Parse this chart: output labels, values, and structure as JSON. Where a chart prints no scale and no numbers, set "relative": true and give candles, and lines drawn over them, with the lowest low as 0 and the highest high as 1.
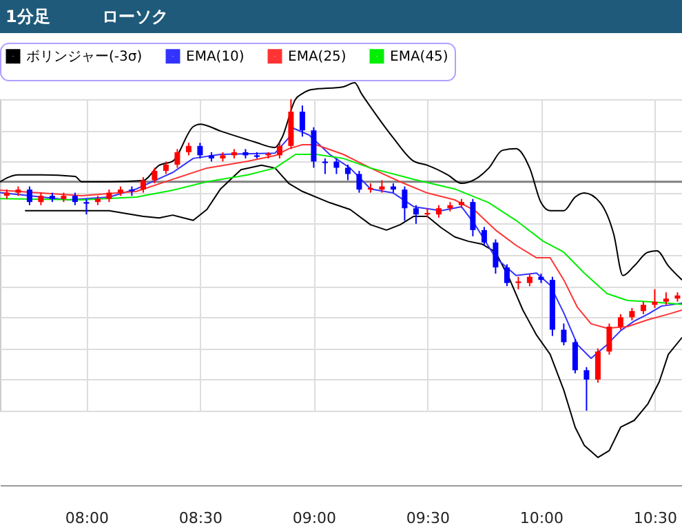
{
  "chart_data": {
    "type": "candlestick",
    "relative": true,
    "grid": true,
    "legend": "top left",
    "tick_labels": "x",
    "annotations": [
      "1分足",
      "ローソク"
    ],
    "xlim": [
      7.62,
      10.62
    ],
    "xticks": [
      {
        "value": 8,
        "label": "08:00"
      },
      {
        "value": 8.5,
        "label": "08:30"
      },
      {
        "value": 9,
        "label": "09:00"
      },
      {
        "value": 9.5,
        "label": "09:30"
      },
      {
        "value": 10,
        "label": "10:00"
      },
      {
        "value": 10.5,
        "label": "10:30"
      }
    ],
    "x": [
      7.65,
      7.7,
      7.75,
      7.8,
      7.85,
      7.9,
      7.95,
      8.0,
      8.05,
      8.1,
      8.15,
      8.2,
      8.25,
      8.3,
      8.35,
      8.4,
      8.45,
      8.5,
      8.55,
      8.6,
      8.65,
      8.7,
      8.75,
      8.8,
      8.85,
      8.9,
      8.95,
      9.0,
      9.05,
      9.1,
      9.15,
      9.2,
      9.25,
      9.3,
      9.35,
      9.4,
      9.45,
      9.5,
      9.55,
      9.6,
      9.65,
      9.7,
      9.75,
      9.8,
      9.85,
      9.9,
      9.95,
      10.0,
      10.05,
      10.1,
      10.15,
      10.2,
      10.25,
      10.3,
      10.35,
      10.4,
      10.45,
      10.5,
      10.55,
      10.6
    ],
    "ohlc": [
      [
        0.69,
        0.71,
        0.68,
        0.7
      ],
      [
        0.7,
        0.72,
        0.69,
        0.71
      ],
      [
        0.71,
        0.72,
        0.66,
        0.67
      ],
      [
        0.67,
        0.7,
        0.66,
        0.69
      ],
      [
        0.69,
        0.7,
        0.67,
        0.68
      ],
      [
        0.68,
        0.7,
        0.67,
        0.69
      ],
      [
        0.69,
        0.7,
        0.66,
        0.67
      ],
      [
        0.67,
        0.68,
        0.63,
        0.665
      ],
      [
        0.67,
        0.69,
        0.66,
        0.68
      ],
      [
        0.68,
        0.71,
        0.67,
        0.7
      ],
      [
        0.7,
        0.72,
        0.69,
        0.71
      ],
      [
        0.71,
        0.72,
        0.69,
        0.705
      ],
      [
        0.71,
        0.75,
        0.7,
        0.74
      ],
      [
        0.74,
        0.78,
        0.73,
        0.77
      ],
      [
        0.77,
        0.8,
        0.76,
        0.79
      ],
      [
        0.79,
        0.84,
        0.78,
        0.83
      ],
      [
        0.83,
        0.86,
        0.82,
        0.85
      ],
      [
        0.85,
        0.86,
        0.81,
        0.82
      ],
      [
        0.82,
        0.83,
        0.8,
        0.81
      ],
      [
        0.81,
        0.83,
        0.8,
        0.82
      ],
      [
        0.82,
        0.84,
        0.81,
        0.83
      ],
      [
        0.83,
        0.84,
        0.81,
        0.82
      ],
      [
        0.82,
        0.83,
        0.81,
        0.815
      ],
      [
        0.82,
        0.83,
        0.81,
        0.825
      ],
      [
        0.82,
        0.86,
        0.81,
        0.85
      ],
      [
        0.85,
        1.0,
        0.84,
        0.96
      ],
      [
        0.96,
        0.98,
        0.88,
        0.9
      ],
      [
        0.9,
        0.91,
        0.78,
        0.8
      ],
      [
        0.8,
        0.81,
        0.76,
        0.795
      ],
      [
        0.8,
        0.81,
        0.76,
        0.78
      ],
      [
        0.78,
        0.79,
        0.74,
        0.76
      ],
      [
        0.76,
        0.77,
        0.7,
        0.71
      ],
      [
        0.71,
        0.73,
        0.7,
        0.715
      ],
      [
        0.71,
        0.74,
        0.7,
        0.72
      ],
      [
        0.72,
        0.73,
        0.7,
        0.71
      ],
      [
        0.71,
        0.72,
        0.61,
        0.65
      ],
      [
        0.65,
        0.66,
        0.6,
        0.63
      ],
      [
        0.63,
        0.65,
        0.62,
        0.635
      ],
      [
        0.63,
        0.66,
        0.62,
        0.65
      ],
      [
        0.65,
        0.67,
        0.64,
        0.66
      ],
      [
        0.66,
        0.68,
        0.65,
        0.67
      ],
      [
        0.67,
        0.68,
        0.56,
        0.58
      ],
      [
        0.58,
        0.59,
        0.53,
        0.54
      ],
      [
        0.54,
        0.55,
        0.44,
        0.46
      ],
      [
        0.46,
        0.47,
        0.4,
        0.41
      ],
      [
        0.41,
        0.43,
        0.39,
        0.415
      ],
      [
        0.41,
        0.44,
        0.4,
        0.43
      ],
      [
        0.43,
        0.44,
        0.41,
        0.42
      ],
      [
        0.42,
        0.43,
        0.24,
        0.26
      ],
      [
        0.26,
        0.28,
        0.21,
        0.22
      ],
      [
        0.22,
        0.23,
        0.12,
        0.13
      ],
      [
        0.13,
        0.14,
        0.0,
        0.1
      ],
      [
        0.1,
        0.2,
        0.09,
        0.19
      ],
      [
        0.19,
        0.28,
        0.18,
        0.27
      ],
      [
        0.27,
        0.31,
        0.26,
        0.3
      ],
      [
        0.3,
        0.33,
        0.29,
        0.32
      ],
      [
        0.32,
        0.35,
        0.31,
        0.34
      ],
      [
        0.34,
        0.39,
        0.33,
        0.35
      ],
      [
        0.35,
        0.38,
        0.34,
        0.36
      ],
      [
        0.36,
        0.38,
        0.35,
        0.37
      ]
    ],
    "colors": [
      "#ff0000",
      "#ff0000",
      "#0000ff",
      "#ff0000",
      "#0000ff",
      "#ff0000",
      "#0000ff",
      "#0000ff",
      "#ff0000",
      "#ff0000",
      "#ff0000",
      "#0000ff",
      "#ff0000",
      "#ff0000",
      "#ff0000",
      "#ff0000",
      "#ff0000",
      "#0000ff",
      "#0000ff",
      "#ff0000",
      "#ff0000",
      "#0000ff",
      "#0000ff",
      "#ff0000",
      "#ff0000",
      "#ff0000",
      "#0000ff",
      "#0000ff",
      "#0000ff",
      "#0000ff",
      "#0000ff",
      "#0000ff",
      "#ff0000",
      "#ff0000",
      "#0000ff",
      "#0000ff",
      "#0000ff",
      "#ff0000",
      "#ff0000",
      "#ff0000",
      "#ff0000",
      "#0000ff",
      "#0000ff",
      "#0000ff",
      "#0000ff",
      "#ff0000",
      "#ff0000",
      "#0000ff",
      "#0000ff",
      "#0000ff",
      "#0000ff",
      "#0000ff",
      "#ff0000",
      "#ff0000",
      "#ff0000",
      "#ff0000",
      "#ff0000",
      "#ff0000",
      "#ff0000",
      "#ff0000"
    ],
    "ref_lines": [
      {
        "axis": "y",
        "value": 0.735,
        "color": "#808080"
      }
    ],
    "series": [
      {
        "type": "line",
        "color": "#000000",
        "x": [
          7.62,
          7.7,
          7.8,
          7.95,
          7.98,
          8.1,
          8.25,
          8.32,
          8.38,
          8.47,
          8.5,
          8.59,
          8.74,
          8.83,
          8.86,
          8.92,
          8.95,
          8.99,
          9.13,
          9.18,
          9.21,
          9.26,
          9.35,
          9.44,
          9.5,
          9.59,
          9.65,
          9.71,
          9.77,
          9.83,
          9.89,
          9.95,
          10.0,
          10.04,
          10.1,
          10.15,
          10.19,
          10.26,
          10.32,
          10.36,
          10.41,
          10.47,
          10.51,
          10.56,
          10.62
        ],
        "values": [
          0.735,
          0.757,
          0.757,
          0.752,
          0.735,
          0.735,
          0.739,
          0.788,
          0.801,
          0.912,
          0.92,
          0.898,
          0.863,
          0.845,
          0.876,
          1.0,
          1.018,
          1.031,
          1.04,
          1.053,
          1.018,
          0.965,
          0.876,
          0.801,
          0.788,
          0.757,
          0.73,
          0.743,
          0.779,
          0.836,
          0.841,
          0.779,
          0.668,
          0.642,
          0.642,
          0.686,
          0.699,
          0.668,
          0.566,
          0.434,
          0.465,
          0.509,
          0.513,
          0.465,
          0.42
        ]
      },
      {
        "type": "line",
        "name": "ボリンジャー(-3σ)",
        "color": "#000000",
        "x": [
          7.73,
          7.95,
          8.1,
          8.25,
          8.32,
          8.38,
          8.47,
          8.53,
          8.59,
          8.68,
          8.77,
          8.83,
          8.89,
          8.95,
          9.07,
          9.16,
          9.25,
          9.32,
          9.38,
          9.44,
          9.5,
          9.56,
          9.62,
          9.68,
          9.74,
          9.8,
          9.86,
          9.92,
          9.98,
          10.04,
          10.1,
          10.15,
          10.19,
          10.25,
          10.3,
          10.35,
          10.41,
          10.47,
          10.52,
          10.56,
          10.62
        ],
        "values": [
          0.642,
          0.642,
          0.642,
          0.624,
          0.619,
          0.628,
          0.611,
          0.646,
          0.712,
          0.774,
          0.788,
          0.779,
          0.73,
          0.704,
          0.668,
          0.646,
          0.597,
          0.58,
          0.597,
          0.624,
          0.624,
          0.588,
          0.558,
          0.544,
          0.535,
          0.509,
          0.425,
          0.323,
          0.243,
          0.181,
          0.066,
          -0.053,
          -0.111,
          -0.15,
          -0.128,
          -0.053,
          -0.031,
          0.022,
          0.093,
          0.181,
          0.235
        ]
      },
      {
        "type": "line",
        "name": "EMA(10)",
        "color": "#3333ff",
        "x": [
          7.62,
          7.92,
          8.1,
          8.22,
          8.38,
          8.47,
          8.59,
          8.83,
          8.89,
          8.91,
          8.98,
          9.07,
          9.16,
          9.25,
          9.35,
          9.44,
          9.56,
          9.65,
          9.71,
          9.8,
          9.89,
          9.98,
          10.04,
          10.1,
          10.16,
          10.22,
          10.29,
          10.35,
          10.41,
          10.47,
          10.53,
          10.62
        ],
        "values": [
          0.7,
          0.677,
          0.686,
          0.712,
          0.765,
          0.81,
          0.823,
          0.827,
          0.876,
          0.907,
          0.885,
          0.823,
          0.779,
          0.712,
          0.699,
          0.655,
          0.642,
          0.655,
          0.597,
          0.491,
          0.434,
          0.442,
          0.403,
          0.314,
          0.212,
          0.168,
          0.212,
          0.257,
          0.288,
          0.31,
          0.336,
          0.345
        ]
      },
      {
        "type": "line",
        "name": "EMA(25)",
        "color": "#ff3333",
        "x": [
          7.62,
          7.98,
          8.22,
          8.38,
          8.53,
          8.71,
          8.83,
          8.89,
          8.95,
          9.01,
          9.13,
          9.25,
          9.38,
          9.5,
          9.62,
          9.71,
          9.8,
          9.89,
          9.98,
          10.04,
          10.1,
          10.16,
          10.22,
          10.29,
          10.38,
          10.47,
          10.56,
          10.62
        ],
        "values": [
          0.708,
          0.69,
          0.704,
          0.743,
          0.779,
          0.801,
          0.819,
          0.841,
          0.854,
          0.854,
          0.823,
          0.779,
          0.735,
          0.699,
          0.677,
          0.642,
          0.58,
          0.531,
          0.491,
          0.491,
          0.42,
          0.332,
          0.279,
          0.265,
          0.27,
          0.292,
          0.31,
          0.323
        ]
      },
      {
        "type": "line",
        "name": "EMA(45)",
        "color": "#00ee00",
        "x": [
          7.62,
          7.98,
          8.22,
          8.38,
          8.53,
          8.71,
          8.83,
          8.92,
          9.01,
          9.13,
          9.25,
          9.44,
          9.62,
          9.77,
          9.89,
          10.01,
          10.1,
          10.19,
          10.29,
          10.38,
          10.47,
          10.56,
          10.62
        ],
        "values": [
          0.681,
          0.677,
          0.686,
          0.708,
          0.735,
          0.757,
          0.779,
          0.823,
          0.823,
          0.81,
          0.779,
          0.743,
          0.712,
          0.668,
          0.611,
          0.544,
          0.509,
          0.442,
          0.376,
          0.354,
          0.35,
          0.345,
          0.341
        ]
      }
    ]
  }
}
